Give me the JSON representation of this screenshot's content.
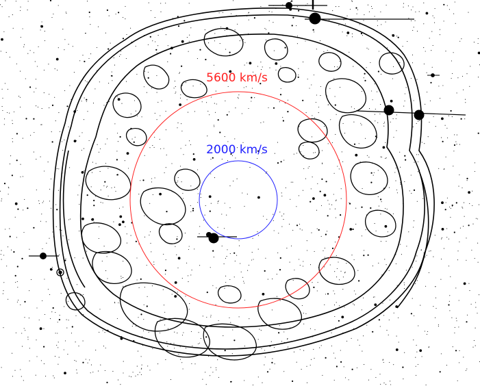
{
  "image": {
    "background_color": "#ffffff",
    "star_color": "#000000",
    "contour_color": "#000000"
  },
  "circles": [
    {
      "label": "5600 km/s",
      "color": "#ff2020"
    },
    {
      "label": "2000 km/s",
      "color": "#2020ff"
    }
  ]
}
